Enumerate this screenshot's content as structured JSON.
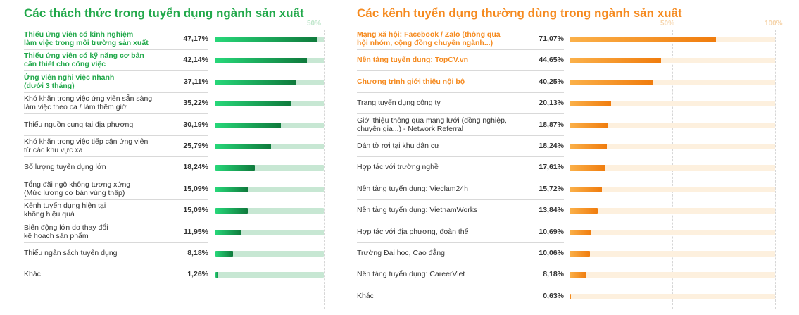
{
  "chart_data": [
    {
      "type": "bar",
      "title": "Các thách thức trong tuyển dụng ngành sản xuất",
      "scale_labels": [
        "50%"
      ],
      "colors": {
        "title": "#21a84a",
        "bar_start": "#27d779",
        "bar_end": "#0f7a3c",
        "track": "#c7e7d3"
      },
      "categories": [
        "Thiếu ứng viên có kinh nghiệm\nlàm việc trong môi trường sản xuất",
        "Thiếu ứng viên có kỹ năng cơ bản\ncần thiết cho công việc",
        "Ứng viên nghỉ việc nhanh\n(dưới 3 tháng)",
        "Khó khăn trong việc ứng viên sẵn sàng\nlàm việc theo ca / làm thêm giờ",
        "Thiếu nguồn cung tại địa phương",
        "Khó khăn trong việc tiếp cận ứng viên\ntừ các khu vực xa",
        "Số lượng tuyển dụng lớn",
        "Tổng đãi ngộ không tương xứng\n(Mức lương cơ bản vùng thấp)",
        "Kênh tuyển dụng hiện tại\nkhông hiệu quả",
        "Biến động lớn do thay đổi\nkế hoạch sản phẩm",
        "Thiếu ngân sách tuyển dụng",
        "Khác"
      ],
      "values": [
        47.17,
        42.14,
        37.11,
        35.22,
        30.19,
        25.79,
        18.24,
        15.09,
        15.09,
        11.95,
        8.18,
        1.26
      ],
      "value_labels": [
        "47,17%",
        "42,14%",
        "37,11%",
        "35,22%",
        "30,19%",
        "25,79%",
        "18,24%",
        "15,09%",
        "15,09%",
        "11,95%",
        "8,18%",
        "1,26%"
      ],
      "highlighted_count": 3,
      "xlim": [
        0,
        50
      ]
    },
    {
      "type": "bar",
      "title": "Các kênh tuyển dụng thường dùng trong ngành sản xuất",
      "scale_labels": [
        "50%",
        "100%"
      ],
      "colors": {
        "title": "#f58a1f",
        "bar_start": "#fbb14a",
        "bar_end": "#f07c0d",
        "track": "#fdf0de"
      },
      "categories": [
        "Mạng xã hội: Facebook / Zalo (thông qua\nhội nhóm, cộng đồng chuyên ngành...)",
        "Nền tảng tuyển dụng: TopCV.vn",
        "Chương trình giới thiệu nội bộ",
        "Trang tuyển dụng công ty",
        "Giới thiệu thông qua mạng lưới (đồng nghiệp,\nchuyên gia...) - Network Referral",
        "Dán tờ rơi tại khu dân cư",
        "Hợp tác với trường nghề",
        "Nền tảng tuyển dụng: Vieclam24h",
        "Nền tảng tuyển dụng: VietnamWorks",
        "Hợp tác với địa phương, đoàn thể",
        "Trường Đại học, Cao đẳng",
        "Nền tảng tuyển dụng: CareerViet",
        "Khác"
      ],
      "values": [
        71.07,
        44.65,
        40.25,
        20.13,
        18.87,
        18.24,
        17.61,
        15.72,
        13.84,
        10.69,
        10.06,
        8.18,
        0.63
      ],
      "value_labels": [
        "71,07%",
        "44,65%",
        "40,25%",
        "20,13%",
        "18,87%",
        "18,24%",
        "17,61%",
        "15,72%",
        "13,84%",
        "10,69%",
        "10,06%",
        "8,18%",
        "0,63%"
      ],
      "highlighted_count": 3,
      "xlim": [
        0,
        100
      ]
    }
  ]
}
